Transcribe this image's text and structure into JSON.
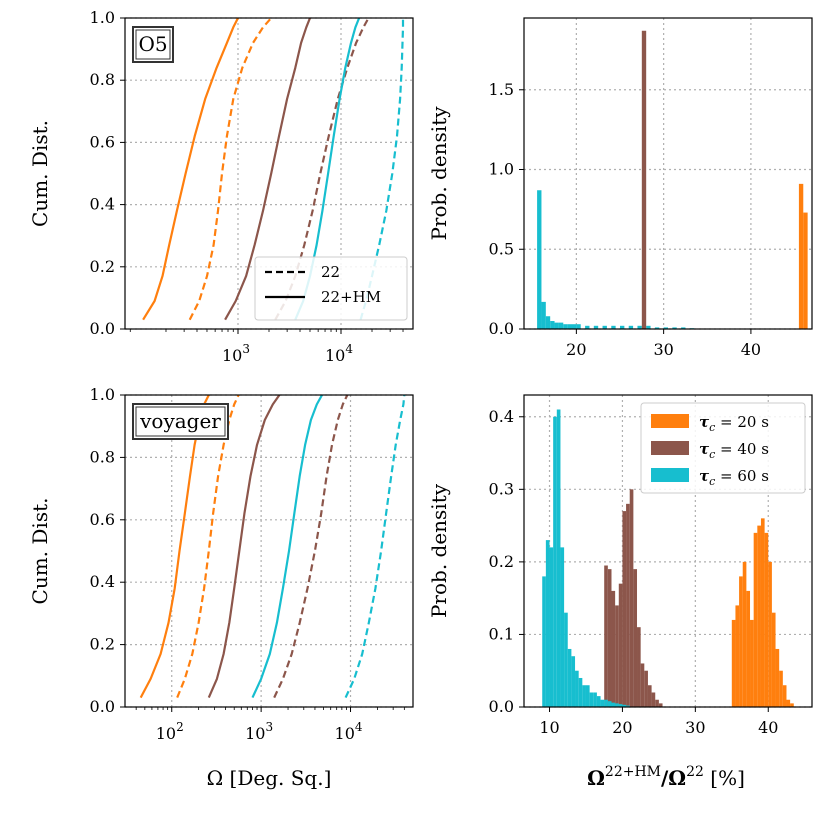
{
  "colors": {
    "tau20": "#ff7f0e",
    "tau40": "#8c564b",
    "tau60": "#17becf"
  },
  "chart_data": [
    {
      "type": "line",
      "panel": "top-left",
      "tag": "O5",
      "xscale": "log",
      "xlim": [
        80,
        50000
      ],
      "ylim": [
        0,
        1
      ],
      "xticks": [
        {
          "value": 1000,
          "base": "10",
          "exp": "3"
        },
        {
          "value": 10000,
          "base": "10",
          "exp": "4"
        }
      ],
      "yticks": [
        "0.0",
        "0.2",
        "0.4",
        "0.6",
        "0.8",
        "1.0"
      ],
      "ylabel": "Cum. Dist.",
      "xlabel": "",
      "legend": {
        "position": "lower-right",
        "entries": [
          {
            "label": "22",
            "style": "dashed"
          },
          {
            "label": "22+HM",
            "style": "solid"
          }
        ]
      },
      "series": [
        {
          "name": "τc = 20 s, 22+HM",
          "color": "tau20",
          "style": "solid",
          "x": [
            120,
            155,
            185,
            215,
            255,
            310,
            380,
            480,
            620,
            780,
            900,
            1000
          ],
          "y": [
            0.03,
            0.09,
            0.17,
            0.27,
            0.38,
            0.5,
            0.62,
            0.74,
            0.84,
            0.92,
            0.97,
            1.0
          ]
        },
        {
          "name": "τc = 20 s, 22",
          "color": "tau20",
          "style": "dashed",
          "x": [
            340,
            420,
            500,
            580,
            640,
            700,
            780,
            900,
            1100,
            1400,
            1750,
            2100
          ],
          "y": [
            0.03,
            0.09,
            0.17,
            0.27,
            0.38,
            0.5,
            0.62,
            0.74,
            0.84,
            0.92,
            0.97,
            1.0
          ]
        },
        {
          "name": "τc = 40 s, 22+HM",
          "color": "tau40",
          "style": "solid",
          "x": [
            750,
            950,
            1200,
            1450,
            1750,
            2100,
            2500,
            3000,
            3600,
            4100,
            4600,
            5000
          ],
          "y": [
            0.03,
            0.09,
            0.17,
            0.27,
            0.38,
            0.5,
            0.62,
            0.74,
            0.84,
            0.92,
            0.97,
            1.0
          ]
        },
        {
          "name": "τc = 40 s, 22",
          "color": "tau40",
          "style": "dashed",
          "x": [
            2300,
            2900,
            3600,
            4400,
            5300,
            6300,
            7600,
            9300,
            11500,
            14000,
            16500,
            18500
          ],
          "y": [
            0.03,
            0.09,
            0.17,
            0.27,
            0.38,
            0.5,
            0.62,
            0.74,
            0.84,
            0.92,
            0.97,
            1.0
          ]
        },
        {
          "name": "τc = 60 s, 22+HM",
          "color": "tau60",
          "style": "solid",
          "x": [
            3600,
            4300,
            5000,
            5800,
            6600,
            7500,
            8500,
            9700,
            11000,
            12500,
            13800,
            15000
          ],
          "y": [
            0.03,
            0.09,
            0.17,
            0.27,
            0.38,
            0.5,
            0.62,
            0.74,
            0.84,
            0.92,
            0.97,
            1.0
          ]
        },
        {
          "name": "τc = 60 s, 22",
          "color": "tau60",
          "style": "dashed",
          "x": [
            15500,
            17500,
            20000,
            23500,
            27500,
            31500,
            35000,
            37500,
            38800,
            39500,
            40000,
            40000
          ],
          "y": [
            0.03,
            0.09,
            0.17,
            0.27,
            0.38,
            0.5,
            0.62,
            0.74,
            0.84,
            0.92,
            0.97,
            1.0
          ]
        }
      ]
    },
    {
      "type": "bar",
      "panel": "top-right",
      "xlim": [
        14,
        47
      ],
      "ylim": [
        0,
        1.95
      ],
      "xticks": [
        "20",
        "30",
        "40"
      ],
      "yticks": [
        "0.0",
        "0.5",
        "1.0",
        "1.5"
      ],
      "ylabel": "Prob. density",
      "xlabel": "",
      "bin_width": 0.5,
      "series": [
        {
          "name": "τc = 60 s",
          "color": "tau60",
          "x": [
            15.5,
            16,
            16.5,
            17,
            17.5,
            18,
            18.5,
            19,
            19.5,
            20,
            21,
            22,
            23,
            24,
            25,
            26,
            27,
            28,
            29,
            30,
            31,
            32,
            33
          ],
          "values": [
            0.87,
            0.17,
            0.08,
            0.05,
            0.04,
            0.04,
            0.03,
            0.03,
            0.03,
            0.03,
            0.02,
            0.02,
            0.02,
            0.02,
            0.02,
            0.02,
            0.02,
            0.02,
            0.01,
            0.01,
            0.01,
            0.01,
            0.005
          ]
        },
        {
          "name": "τc = 40 s",
          "color": "tau40",
          "x": [
            27.5
          ],
          "values": [
            1.87
          ]
        },
        {
          "name": "τc = 20 s",
          "color": "tau20",
          "x": [
            45.5,
            46
          ],
          "values": [
            0.91,
            0.73
          ]
        }
      ]
    },
    {
      "type": "line",
      "panel": "bottom-left",
      "tag": "voyager",
      "xscale": "log",
      "xlim": [
        30,
        50000
      ],
      "ylim": [
        0,
        1
      ],
      "xticks": [
        {
          "value": 100,
          "base": "10",
          "exp": "2"
        },
        {
          "value": 1000,
          "base": "10",
          "exp": "3"
        },
        {
          "value": 10000,
          "base": "10",
          "exp": "4"
        }
      ],
      "yticks": [
        "0.0",
        "0.2",
        "0.4",
        "0.6",
        "0.8",
        "1.0"
      ],
      "ylabel": "Cum. Dist.",
      "xlabel": "Ω [Deg. Sq.]",
      "series": [
        {
          "name": "τc = 20 s, 22+HM",
          "color": "tau20",
          "style": "solid",
          "x": [
            45,
            58,
            75,
            92,
            108,
            122,
            140,
            160,
            180,
            205,
            230,
            260
          ],
          "y": [
            0.03,
            0.09,
            0.17,
            0.27,
            0.38,
            0.5,
            0.62,
            0.74,
            0.84,
            0.92,
            0.97,
            1.0
          ]
        },
        {
          "name": "τc = 20 s, 22",
          "color": "tau20",
          "style": "dashed",
          "x": [
            115,
            140,
            170,
            200,
            230,
            260,
            290,
            330,
            380,
            440,
            500,
            560
          ],
          "y": [
            0.03,
            0.09,
            0.17,
            0.27,
            0.38,
            0.5,
            0.62,
            0.74,
            0.84,
            0.92,
            0.97,
            1.0
          ]
        },
        {
          "name": "τc = 40 s, 22+HM",
          "color": "tau40",
          "style": "solid",
          "x": [
            260,
            320,
            380,
            440,
            500,
            570,
            650,
            760,
            900,
            1100,
            1350,
            1600
          ],
          "y": [
            0.03,
            0.09,
            0.17,
            0.27,
            0.38,
            0.5,
            0.62,
            0.74,
            0.84,
            0.92,
            0.97,
            1.0
          ]
        },
        {
          "name": "τc = 40 s, 22",
          "color": "tau40",
          "style": "dashed",
          "x": [
            1400,
            1750,
            2200,
            2700,
            3300,
            4000,
            4700,
            5400,
            6200,
            7200,
            8200,
            9200
          ],
          "y": [
            0.03,
            0.09,
            0.17,
            0.27,
            0.38,
            0.5,
            0.62,
            0.74,
            0.84,
            0.92,
            0.97,
            1.0
          ]
        },
        {
          "name": "τc = 60 s, 22+HM",
          "color": "tau60",
          "style": "solid",
          "x": [
            800,
            1000,
            1250,
            1500,
            1750,
            2050,
            2350,
            2700,
            3100,
            3600,
            4200,
            4800
          ],
          "y": [
            0.03,
            0.09,
            0.17,
            0.27,
            0.38,
            0.5,
            0.62,
            0.74,
            0.84,
            0.92,
            0.97,
            1.0
          ]
        },
        {
          "name": "τc = 60 s, 22",
          "color": "tau60",
          "style": "dashed",
          "x": [
            8800,
            11000,
            13500,
            16000,
            19000,
            22000,
            25000,
            28500,
            32000,
            36000,
            39000,
            40000
          ],
          "y": [
            0.03,
            0.09,
            0.17,
            0.27,
            0.38,
            0.5,
            0.62,
            0.74,
            0.84,
            0.92,
            0.97,
            1.0
          ]
        }
      ]
    },
    {
      "type": "bar",
      "panel": "bottom-right",
      "xlim": [
        6.5,
        46
      ],
      "ylim": [
        0,
        0.43
      ],
      "xticks": [
        "10",
        "20",
        "30",
        "40"
      ],
      "yticks": [
        "0.0",
        "0.1",
        "0.2",
        "0.3",
        "0.4"
      ],
      "ylabel": "Prob. density",
      "xlabel": "Ω22+HM/Ω22 [%]",
      "xlabel_main": "Ω",
      "xlabel_sup1": "22+HM",
      "xlabel_mid": "/Ω",
      "xlabel_sup2": "22",
      "xlabel_tail": " [%]",
      "bin_width": 0.5,
      "legend": {
        "position": "top-right",
        "entries": [
          {
            "sym": "τ",
            "sub": "c",
            "rest": " = 20 s",
            "color": "tau20"
          },
          {
            "sym": "τ",
            "sub": "c",
            "rest": " = 40 s",
            "color": "tau40"
          },
          {
            "sym": "τ",
            "sub": "c",
            "rest": " = 60 s",
            "color": "tau60"
          }
        ]
      },
      "series": [
        {
          "name": "τc = 20 s",
          "color": "tau20",
          "x": [
            35,
            35.5,
            36,
            36.5,
            37,
            37.5,
            38,
            38.5,
            39,
            39.5,
            40,
            40.5,
            41,
            41.5,
            42,
            42.5,
            43
          ],
          "values": [
            0.12,
            0.14,
            0.18,
            0.2,
            0.16,
            0.12,
            0.24,
            0.25,
            0.26,
            0.24,
            0.2,
            0.13,
            0.08,
            0.05,
            0.03,
            0.01,
            0.005
          ]
        },
        {
          "name": "τc = 40 s",
          "color": "tau40",
          "x": [
            17.5,
            18,
            18.5,
            19,
            19.5,
            20,
            20.5,
            21,
            21.5,
            22,
            22.5,
            23,
            23.5,
            24,
            24.5,
            25
          ],
          "values": [
            0.195,
            0.19,
            0.16,
            0.14,
            0.17,
            0.27,
            0.28,
            0.3,
            0.19,
            0.11,
            0.06,
            0.05,
            0.03,
            0.02,
            0.01,
            0.005
          ]
        },
        {
          "name": "τc = 60 s",
          "color": "tau60",
          "x": [
            9,
            9.5,
            10,
            10.5,
            11,
            11.5,
            12,
            12.5,
            13,
            13.5,
            14,
            14.5,
            15,
            15.5,
            16,
            16.5,
            17,
            17.5,
            18,
            18.5,
            19,
            19.5,
            20,
            20.5
          ],
          "values": [
            0.18,
            0.23,
            0.22,
            0.4,
            0.41,
            0.22,
            0.13,
            0.08,
            0.07,
            0.05,
            0.04,
            0.03,
            0.03,
            0.02,
            0.02,
            0.015,
            0.01,
            0.01,
            0.008,
            0.006,
            0.005,
            0.004,
            0.003,
            0.002
          ]
        }
      ]
    }
  ]
}
